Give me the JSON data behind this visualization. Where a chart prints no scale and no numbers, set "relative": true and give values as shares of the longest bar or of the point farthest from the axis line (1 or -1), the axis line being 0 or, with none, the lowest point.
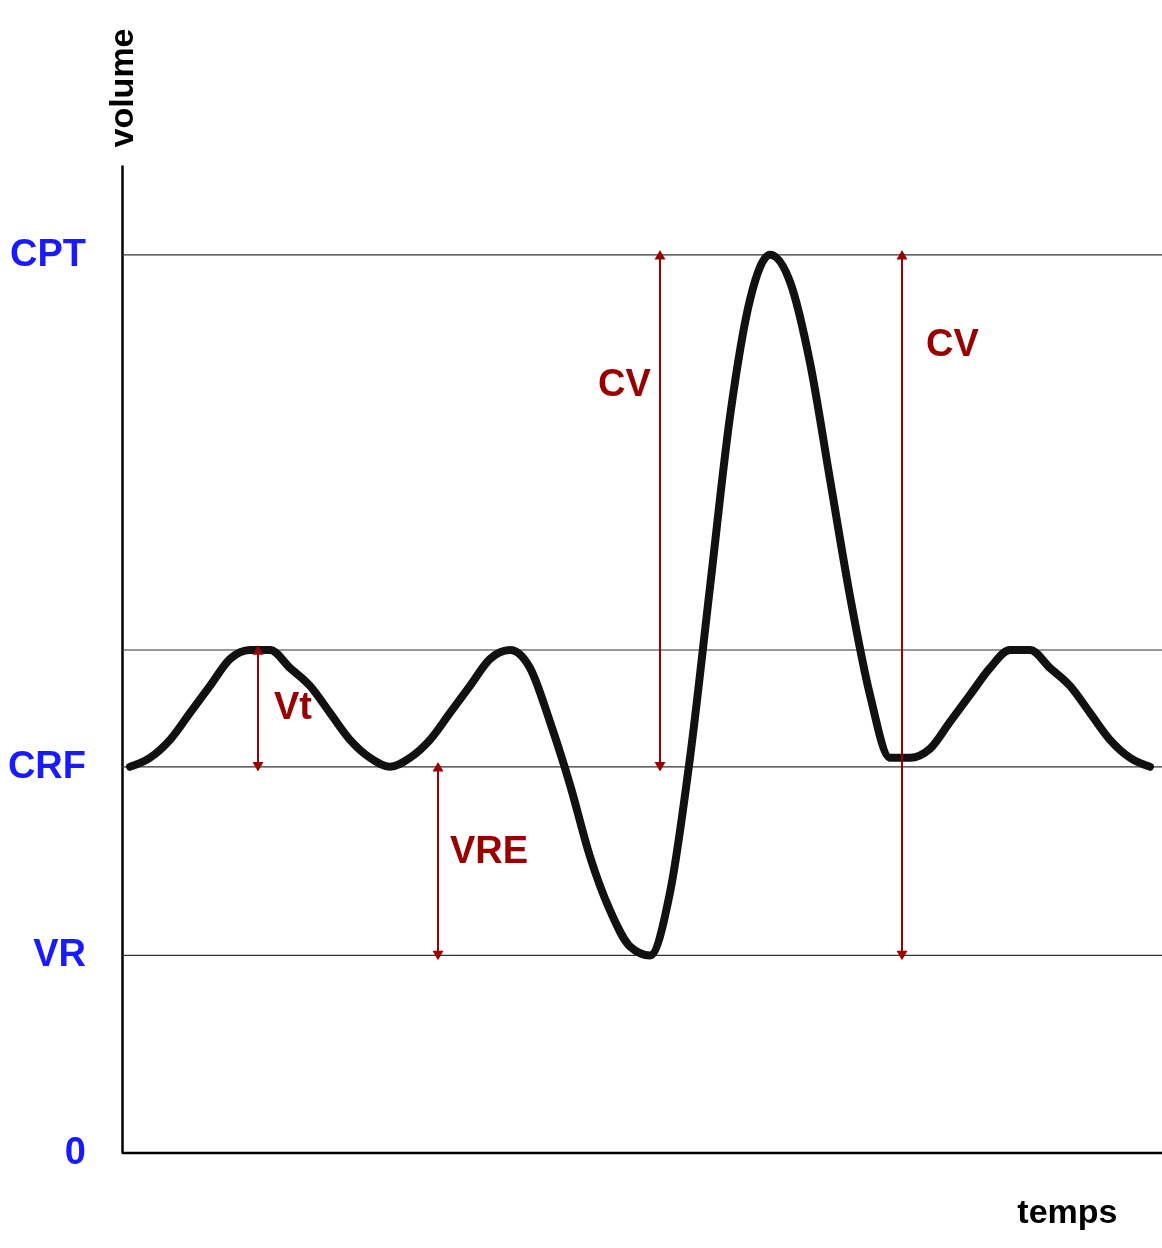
{
  "chart_data": {
    "type": "line",
    "relative": true,
    "xlabel": "temps",
    "ylabel": "volume",
    "categories": [
      null,
      null,
      null,
      null,
      null,
      null,
      null,
      null,
      null,
      null,
      null,
      null,
      null,
      null,
      null,
      null,
      null,
      null,
      null,
      null,
      null,
      null,
      null,
      null,
      null,
      null,
      null,
      null,
      null,
      null,
      null,
      null,
      null,
      null,
      null,
      null,
      null,
      null,
      null,
      null,
      null,
      null,
      null,
      null,
      null,
      null,
      null,
      null,
      null,
      null,
      null,
      null
    ],
    "series": [
      {
        "color": "#111111",
        "values": [
          0.43,
          0.44,
          0.46,
          0.49,
          0.52,
          0.55,
          0.56,
          0.56,
          0.54,
          0.52,
          0.49,
          0.46,
          0.44,
          0.43,
          0.44,
          0.46,
          0.49,
          0.52,
          0.55,
          0.56,
          0.54,
          0.48,
          0.41,
          0.33,
          0.27,
          0.23,
          0.22,
          0.29,
          0.44,
          0.63,
          0.82,
          0.95,
          1.0,
          0.97,
          0.88,
          0.75,
          0.62,
          0.51,
          0.44,
          0.44,
          0.45,
          0.48,
          0.51,
          0.54,
          0.56,
          0.56,
          0.54,
          0.52,
          0.49,
          0.46,
          0.44,
          0.43
        ]
      }
    ],
    "ref_lines": [
      {
        "axis": "y",
        "value": 1.0,
        "label": "CPT",
        "color": "#333333"
      },
      {
        "axis": "y",
        "value": 0.56,
        "label": null,
        "color": "#333333"
      },
      {
        "axis": "y",
        "value": 0.43,
        "label": "CRF",
        "color": "#333333"
      },
      {
        "axis": "y",
        "value": 0.22,
        "label": "VR",
        "color": "#333333"
      },
      {
        "axis": "y",
        "value": 0,
        "label": "0",
        "color": "#000000"
      }
    ],
    "annotations": [
      "Vt",
      "VRE",
      "CV",
      "CV"
    ],
    "grid": false,
    "marker": "none",
    "line_style": "solid"
  }
}
